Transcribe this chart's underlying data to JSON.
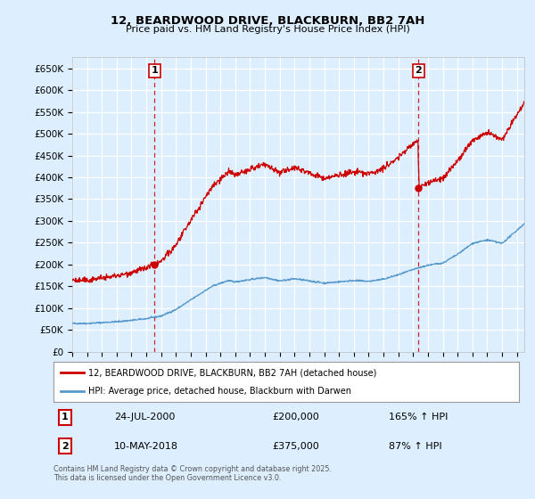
{
  "title_line1": "12, BEARDWOOD DRIVE, BLACKBURN, BB2 7AH",
  "title_line2": "Price paid vs. HM Land Registry's House Price Index (HPI)",
  "background_color": "#ddeeff",
  "plot_bg_color": "#ddeeff",
  "grid_color": "#ffffff",
  "hpi_color": "#5599cc",
  "price_color": "#cc0000",
  "sale1_date_num": 2000.56,
  "sale1_price": 200000,
  "sale1_label": "1",
  "sale1_date_str": "24-JUL-2000",
  "sale1_hpi_pct": "165% ↑ HPI",
  "sale2_date_num": 2018.36,
  "sale2_price": 375000,
  "sale2_label": "2",
  "sale2_date_str": "10-MAY-2018",
  "sale2_hpi_pct": "87% ↑ HPI",
  "ylim_min": 0,
  "ylim_max": 675000,
  "xlim_min": 1995.0,
  "xlim_max": 2025.5,
  "legend_line1": "12, BEARDWOOD DRIVE, BLACKBURN, BB2 7AH (detached house)",
  "legend_line2": "HPI: Average price, detached house, Blackburn with Darwen",
  "footnote": "Contains HM Land Registry data © Crown copyright and database right 2025.\nThis data is licensed under the Open Government Licence v3.0."
}
